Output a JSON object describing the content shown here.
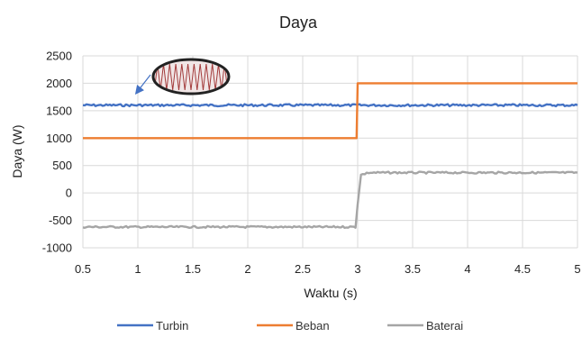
{
  "chart_data": {
    "type": "line",
    "title": "Daya",
    "xlabel": "Waktu (s)",
    "ylabel": "Daya (W)",
    "xlim": [
      0.5,
      5
    ],
    "ylim": [
      -1000,
      2500
    ],
    "xticks": [
      0.5,
      1,
      1.5,
      2,
      2.5,
      3,
      3.5,
      4,
      4.5,
      5
    ],
    "xtick_labels": [
      "0.5",
      "1",
      "1.5",
      "2",
      "2.5",
      "3",
      "3.5",
      "4",
      "4.5",
      "5"
    ],
    "yticks": [
      -1000,
      -500,
      0,
      500,
      1000,
      1500,
      2000,
      2500
    ],
    "ytick_labels": [
      "-1000",
      "-500",
      "0",
      "500",
      "1000",
      "1500",
      "2000",
      "2500"
    ],
    "grid": true,
    "legend_position": "bottom",
    "series": [
      {
        "name": "Turbin",
        "color": "#4472C4",
        "x": [
          0.5,
          3.0,
          5.0
        ],
        "y": [
          1600,
          1600,
          1600
        ]
      },
      {
        "name": "Beban",
        "color": "#ED7D31",
        "x": [
          0.5,
          2.99,
          3.0,
          5.0
        ],
        "y": [
          1000,
          1000,
          2000,
          2000
        ]
      },
      {
        "name": "Baterai",
        "color": "#A5A5A5",
        "x": [
          0.5,
          2.98,
          3.0,
          3.03,
          3.1,
          5.0
        ],
        "y": [
          -620,
          -620,
          -200,
          330,
          370,
          370
        ]
      }
    ],
    "annotation": {
      "type": "zoom-inset",
      "target_series": "Turbin",
      "description_icon": "zigzag-oscillation-icon"
    }
  }
}
